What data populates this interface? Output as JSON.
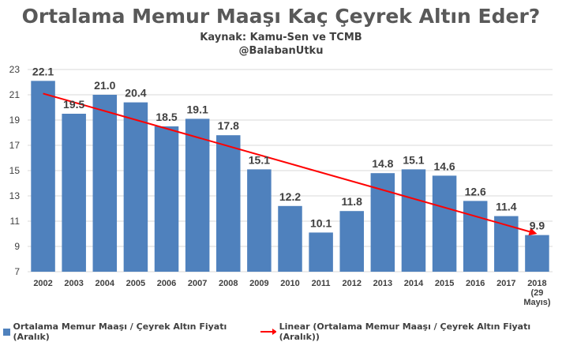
{
  "header": {
    "title": "Ortalama Memur Maaşı Kaç Çeyrek Altın Eder?",
    "source": "Kaynak: Kamu-Sen ve TCMB",
    "handle": "@BalabanUtku"
  },
  "colors": {
    "bar": "#4f81bd",
    "trend": "#ff0000",
    "grid": "#d9d9d9",
    "text": "#404040"
  },
  "chart_data": {
    "type": "bar",
    "title": "Ortalama Memur Maaşı Kaç Çeyrek Altın Eder?",
    "categories": [
      "2002",
      "2003",
      "2004",
      "2005",
      "2006",
      "2007",
      "2008",
      "2009",
      "2010",
      "2011",
      "2012",
      "2013",
      "2014",
      "2015",
      "2016",
      "2017",
      "2018 (29 Mayıs)"
    ],
    "category_lines": [
      [
        "2002"
      ],
      [
        "2003"
      ],
      [
        "2004"
      ],
      [
        "2005"
      ],
      [
        "2006"
      ],
      [
        "2007"
      ],
      [
        "2008"
      ],
      [
        "2009"
      ],
      [
        "2010"
      ],
      [
        "2011"
      ],
      [
        "2012"
      ],
      [
        "2013"
      ],
      [
        "2014"
      ],
      [
        "2015"
      ],
      [
        "2016"
      ],
      [
        "2017"
      ],
      [
        "2018",
        "(29",
        "Mayıs)"
      ]
    ],
    "series": [
      {
        "name": "Ortalama Memur Maaşı / Çeyrek Altın Fiyatı (Aralık)",
        "values": [
          22.1,
          19.5,
          21.0,
          20.4,
          18.5,
          19.1,
          17.8,
          15.1,
          12.2,
          10.1,
          11.8,
          14.8,
          15.1,
          14.6,
          12.6,
          11.4,
          9.9
        ],
        "labels": [
          "22.1",
          "19.5",
          "21.0",
          "20.4",
          "18.5",
          "19.1",
          "17.8",
          "15.1",
          "12.2",
          "10.1",
          "11.8",
          "14.8",
          "15.1",
          "14.6",
          "12.6",
          "11.4",
          "9.9"
        ]
      }
    ],
    "trendline": {
      "name": "Linear (Ortalama Memur Maaşı / Çeyrek Altın Fiyatı (Aralık))",
      "start": 21.1,
      "end": 10.0
    },
    "ylim": [
      7,
      23
    ],
    "yticks": [
      7,
      9,
      11,
      13,
      15,
      17,
      19,
      21,
      23
    ],
    "grid": true,
    "legend_position": "bottom"
  }
}
